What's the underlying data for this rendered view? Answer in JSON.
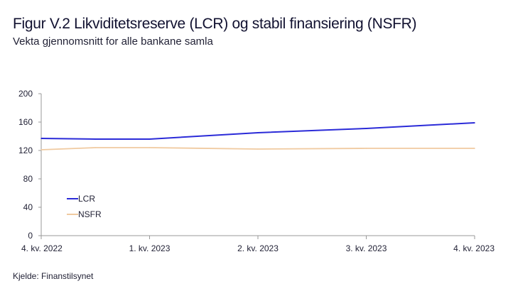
{
  "header": {
    "title": "Figur V.2 Likviditetsreserve (LCR) og stabil finansiering (NSFR)",
    "subtitle": "Vekta gjennomsnitt for alle bankane samla"
  },
  "footer": {
    "source": "Kjelde: Finanstilsynet"
  },
  "colors": {
    "LCR": "#2b2bd8",
    "NSFR": "#f0caa0",
    "axis": "#9a9a9a"
  },
  "chart_data": {
    "type": "line",
    "title": "Figur V.2 Likviditetsreserve (LCR) og stabil finansiering (NSFR)",
    "subtitle": "Vekta gjennomsnitt for alle bankane samla",
    "xlabel": "",
    "ylabel": "",
    "categories": [
      "4. kv. 2022",
      "1. kv. 2023",
      "2. kv. 2023",
      "3. kv. 2023",
      "4. kv. 2023"
    ],
    "x": [
      0,
      0.5,
      1,
      2,
      3,
      4
    ],
    "series": [
      {
        "name": "LCR",
        "values": [
          137,
          136,
          136,
          145,
          151,
          159
        ]
      },
      {
        "name": "NSFR",
        "values": [
          121,
          124,
          124,
          122,
          123,
          123
        ]
      }
    ],
    "ylim": [
      0,
      200
    ],
    "yticks": [
      "0",
      "40",
      "80",
      "120",
      "160",
      "200"
    ],
    "grid": false,
    "legend": "inside-lower-left"
  }
}
